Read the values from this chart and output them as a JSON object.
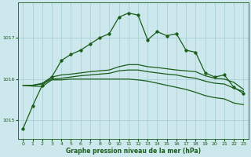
{
  "xlabel": "Graphe pression niveau de la mer (hPa)",
  "background_color": "#cce8ec",
  "grid_color": "#aad0d8",
  "line_color": "#1a5c1a",
  "ylim": [
    1014.55,
    1017.85
  ],
  "xlim": [
    -0.5,
    23.5
  ],
  "yticks": [
    1015,
    1016,
    1017
  ],
  "xticks": [
    0,
    1,
    2,
    3,
    4,
    5,
    6,
    7,
    8,
    9,
    10,
    11,
    12,
    13,
    14,
    15,
    16,
    17,
    18,
    19,
    20,
    21,
    22,
    23
  ],
  "series": [
    {
      "x": [
        0,
        1,
        2,
        3,
        4,
        5,
        6,
        7,
        8,
        9,
        10,
        11,
        12,
        13,
        14,
        15,
        16,
        17,
        18,
        19,
        20,
        21,
        22,
        23
      ],
      "y": [
        1014.8,
        1015.35,
        1015.85,
        1016.05,
        1016.45,
        1016.6,
        1016.7,
        1016.85,
        1017.0,
        1017.1,
        1017.5,
        1017.6,
        1017.55,
        1016.95,
        1017.15,
        1017.05,
        1017.1,
        1016.7,
        1016.65,
        1016.15,
        1016.05,
        1016.1,
        1015.8,
        1015.65
      ],
      "marker": "o",
      "markersize": 2.5,
      "linestyle": "-",
      "linewidth": 0.9
    },
    {
      "x": [
        0,
        1,
        2,
        3,
        4,
        5,
        6,
        7,
        8,
        9,
        10,
        11,
        12,
        13,
        14,
        15,
        16,
        17,
        18,
        19,
        20,
        21,
        22,
        23
      ],
      "y": [
        1015.85,
        1015.85,
        1015.9,
        1016.05,
        1016.1,
        1016.12,
        1016.15,
        1016.18,
        1016.2,
        1016.22,
        1016.3,
        1016.35,
        1016.35,
        1016.3,
        1016.28,
        1016.25,
        1016.22,
        1016.2,
        1016.18,
        1016.08,
        1016.02,
        1016.0,
        1015.92,
        1015.75
      ],
      "marker": null,
      "markersize": null,
      "linestyle": "-",
      "linewidth": 0.9
    },
    {
      "x": [
        0,
        1,
        2,
        3,
        4,
        5,
        6,
        7,
        8,
        9,
        10,
        11,
        12,
        13,
        14,
        15,
        16,
        17,
        18,
        19,
        20,
        21,
        22,
        23
      ],
      "y": [
        1015.85,
        1015.85,
        1015.88,
        1016.0,
        1016.02,
        1016.05,
        1016.08,
        1016.1,
        1016.12,
        1016.14,
        1016.2,
        1016.22,
        1016.22,
        1016.18,
        1016.15,
        1016.12,
        1016.1,
        1016.05,
        1016.02,
        1015.95,
        1015.9,
        1015.88,
        1015.78,
        1015.7
      ],
      "marker": null,
      "markersize": null,
      "linestyle": "-",
      "linewidth": 0.9
    },
    {
      "x": [
        0,
        1,
        2,
        3,
        4,
        5,
        6,
        7,
        8,
        9,
        10,
        11,
        12,
        13,
        14,
        15,
        16,
        17,
        18,
        19,
        20,
        21,
        22,
        23
      ],
      "y": [
        1015.85,
        1015.83,
        1015.82,
        1015.98,
        1015.98,
        1016.0,
        1016.0,
        1016.0,
        1016.0,
        1016.0,
        1016.0,
        1016.0,
        1015.98,
        1015.95,
        1015.9,
        1015.85,
        1015.8,
        1015.75,
        1015.68,
        1015.6,
        1015.55,
        1015.52,
        1015.42,
        1015.38
      ],
      "marker": null,
      "markersize": null,
      "linestyle": "-",
      "linewidth": 0.9
    }
  ]
}
